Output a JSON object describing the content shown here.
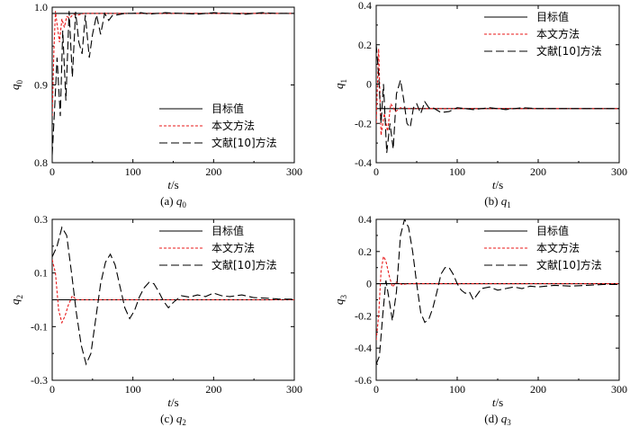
{
  "chart_data": [
    {
      "type": "line",
      "id": "q0",
      "caption_prefix": "(a) ",
      "caption_var": "q",
      "caption_sub": "0",
      "ylabel_var": "q",
      "ylabel_sub": "0",
      "xlabel_var": "t",
      "xlabel_unit": "/s",
      "xlim": [
        0,
        300
      ],
      "ylim": [
        0.8,
        1.0
      ],
      "xticks": [
        0,
        100,
        200,
        300
      ],
      "yticks": [
        0.8,
        0.9,
        1.0
      ],
      "ytick_labels": [
        "0.8",
        "0.9",
        "1.0"
      ],
      "legend_position": "bottom-right",
      "series": [
        {
          "name": "目标值",
          "style": "solid",
          "color": "#000000",
          "x": [
            0,
            300
          ],
          "y": [
            0.992,
            0.992
          ]
        },
        {
          "name": "本文方法",
          "style": "dotted",
          "color": "#e8191a",
          "x": [
            0,
            2,
            4,
            6,
            9,
            12,
            15,
            18,
            22,
            26,
            32,
            40,
            300
          ],
          "y": [
            0.86,
            0.94,
            0.995,
            0.978,
            0.955,
            0.985,
            0.974,
            0.988,
            0.986,
            0.991,
            0.99,
            0.992,
            0.992
          ]
        },
        {
          "name": "文献[10]方法",
          "style": "dashed",
          "color": "#000000",
          "x": [
            0,
            3,
            6,
            10,
            13,
            17,
            21,
            25,
            29,
            33,
            37,
            41,
            46,
            50,
            55,
            60,
            65,
            70,
            75,
            80,
            90,
            100,
            110,
            120,
            140,
            160,
            180,
            200,
            220,
            240,
            260,
            280,
            300
          ],
          "y": [
            0.81,
            0.87,
            0.935,
            0.86,
            0.97,
            0.88,
            0.995,
            0.91,
            0.994,
            0.955,
            0.94,
            0.99,
            0.935,
            0.965,
            0.99,
            0.965,
            0.992,
            0.983,
            0.99,
            0.99,
            0.992,
            0.992,
            0.993,
            0.991,
            0.993,
            0.992,
            0.991,
            0.993,
            0.992,
            0.991,
            0.993,
            0.992,
            0.992
          ]
        }
      ]
    },
    {
      "type": "line",
      "id": "q1",
      "caption_prefix": "(b) ",
      "caption_var": "q",
      "caption_sub": "1",
      "ylabel_var": "q",
      "ylabel_sub": "1",
      "xlabel_var": "t",
      "xlabel_unit": "/s",
      "xlim": [
        0,
        300
      ],
      "ylim": [
        -0.4,
        0.4
      ],
      "xticks": [
        0,
        100,
        200,
        300
      ],
      "yticks": [
        -0.4,
        -0.2,
        0,
        0.2,
        0.4
      ],
      "ytick_labels": [
        "-0.4",
        "-0.2",
        "0",
        "0.2",
        "0.4"
      ],
      "legend_position": "top-right",
      "series": [
        {
          "name": "目标值",
          "style": "solid",
          "color": "#000000",
          "x": [
            0,
            300
          ],
          "y": [
            -0.125,
            -0.125
          ]
        },
        {
          "name": "本文方法",
          "style": "dotted",
          "color": "#e8191a",
          "x": [
            0,
            3,
            6,
            10,
            14,
            18,
            24,
            30,
            38,
            300
          ],
          "y": [
            -0.2,
            0.18,
            -0.26,
            -0.15,
            -0.24,
            -0.1,
            -0.14,
            -0.12,
            -0.125,
            -0.125
          ]
        },
        {
          "name": "文献[10]方法",
          "style": "dashed",
          "color": "#000000",
          "x": [
            0,
            3,
            6,
            9,
            13,
            17,
            21,
            25,
            30,
            34,
            38,
            42,
            46,
            50,
            55,
            60,
            65,
            70,
            80,
            90,
            100,
            120,
            140,
            160,
            180,
            200,
            240,
            280,
            300
          ],
          "y": [
            0.2,
            0.05,
            -0.2,
            0.0,
            -0.35,
            -0.2,
            -0.33,
            -0.05,
            0.02,
            -0.08,
            -0.2,
            -0.22,
            -0.12,
            -0.1,
            -0.15,
            -0.09,
            -0.12,
            -0.12,
            -0.145,
            -0.14,
            -0.12,
            -0.13,
            -0.12,
            -0.13,
            -0.12,
            -0.125,
            -0.125,
            -0.125,
            -0.125
          ]
        }
      ]
    },
    {
      "type": "line",
      "id": "q2",
      "caption_prefix": "(c) ",
      "caption_var": "q",
      "caption_sub": "2",
      "ylabel_var": "q",
      "ylabel_sub": "2",
      "xlabel_var": "t",
      "xlabel_unit": "/s",
      "xlim": [
        0,
        300
      ],
      "ylim": [
        -0.3,
        0.3
      ],
      "xticks": [
        0,
        100,
        200,
        300
      ],
      "yticks": [
        -0.3,
        -0.1,
        0.1,
        0.3
      ],
      "ytick_labels": [
        "-0.3",
        "-0.1",
        "0.1",
        "0.3"
      ],
      "legend_position": "top-right",
      "series": [
        {
          "name": "目标值",
          "style": "solid",
          "color": "#000000",
          "x": [
            0,
            300
          ],
          "y": [
            0.0,
            0.0
          ]
        },
        {
          "name": "本文方法",
          "style": "dotted",
          "color": "#e8191a",
          "x": [
            0,
            4,
            8,
            12,
            16,
            20,
            25,
            30,
            38,
            300
          ],
          "y": [
            0.15,
            0.1,
            -0.04,
            -0.085,
            -0.06,
            -0.02,
            0.015,
            0.0,
            0.0,
            0.0
          ]
        },
        {
          "name": "文献[10]方法",
          "style": "dashed",
          "color": "#000000",
          "x": [
            0,
            6,
            12,
            18,
            24,
            30,
            36,
            42,
            48,
            54,
            60,
            66,
            72,
            78,
            84,
            90,
            96,
            102,
            108,
            114,
            120,
            126,
            132,
            138,
            144,
            150,
            160,
            170,
            180,
            190,
            200,
            210,
            220,
            235,
            250,
            265,
            280,
            300
          ],
          "y": [
            0.16,
            0.2,
            0.27,
            0.24,
            0.1,
            -0.05,
            -0.17,
            -0.24,
            -0.2,
            -0.07,
            0.06,
            0.14,
            0.17,
            0.13,
            0.05,
            -0.03,
            -0.07,
            -0.04,
            0.01,
            0.045,
            0.065,
            0.06,
            0.03,
            -0.005,
            -0.03,
            -0.01,
            0.015,
            0.01,
            0.018,
            0.012,
            0.025,
            0.015,
            0.012,
            0.018,
            0.008,
            0.006,
            0.003,
            0.002
          ]
        }
      ]
    },
    {
      "type": "line",
      "id": "q3",
      "caption_prefix": "(d) ",
      "caption_var": "q",
      "caption_sub": "3",
      "ylabel_var": "q",
      "ylabel_sub": "3",
      "xlabel_var": "t",
      "xlabel_unit": "/s",
      "xlim": [
        0,
        300
      ],
      "ylim": [
        -0.6,
        0.4
      ],
      "xticks": [
        0,
        100,
        200,
        300
      ],
      "yticks": [
        -0.6,
        -0.4,
        -0.2,
        0,
        0.2,
        0.4
      ],
      "ytick_labels": [
        "-0.6",
        "-0.4",
        "-0.2",
        "0",
        "0.2",
        "0.4"
      ],
      "legend_position": "top-right",
      "series": [
        {
          "name": "目标值",
          "style": "solid",
          "color": "#000000",
          "x": [
            0,
            300
          ],
          "y": [
            0.0,
            0.0
          ]
        },
        {
          "name": "本文方法",
          "style": "dotted",
          "color": "#e8191a",
          "x": [
            0,
            3,
            6,
            9,
            12,
            16,
            20,
            25,
            32,
            40,
            300
          ],
          "y": [
            -0.35,
            -0.2,
            0.08,
            0.17,
            0.14,
            0.05,
            -0.02,
            0.01,
            -0.005,
            0.0,
            0.0
          ]
        },
        {
          "name": "文献[10]方法",
          "style": "dashed",
          "color": "#000000",
          "x": [
            0,
            4,
            8,
            12,
            16,
            20,
            25,
            30,
            35,
            40,
            45,
            50,
            55,
            60,
            65,
            70,
            75,
            80,
            85,
            90,
            95,
            100,
            105,
            110,
            115,
            120,
            130,
            140,
            150,
            160,
            170,
            180,
            190,
            200,
            220,
            240,
            260,
            280,
            300
          ],
          "y": [
            -0.5,
            -0.45,
            -0.2,
            0.02,
            -0.1,
            -0.23,
            -0.05,
            0.3,
            0.4,
            0.35,
            0.2,
            0.0,
            -0.18,
            -0.24,
            -0.22,
            -0.15,
            -0.05,
            0.06,
            0.1,
            0.1,
            0.06,
            0.0,
            -0.04,
            -0.06,
            -0.05,
            -0.1,
            -0.03,
            -0.02,
            -0.04,
            -0.03,
            -0.02,
            -0.03,
            -0.015,
            -0.02,
            -0.01,
            -0.015,
            -0.01,
            -0.005,
            -0.005
          ]
        }
      ]
    }
  ]
}
